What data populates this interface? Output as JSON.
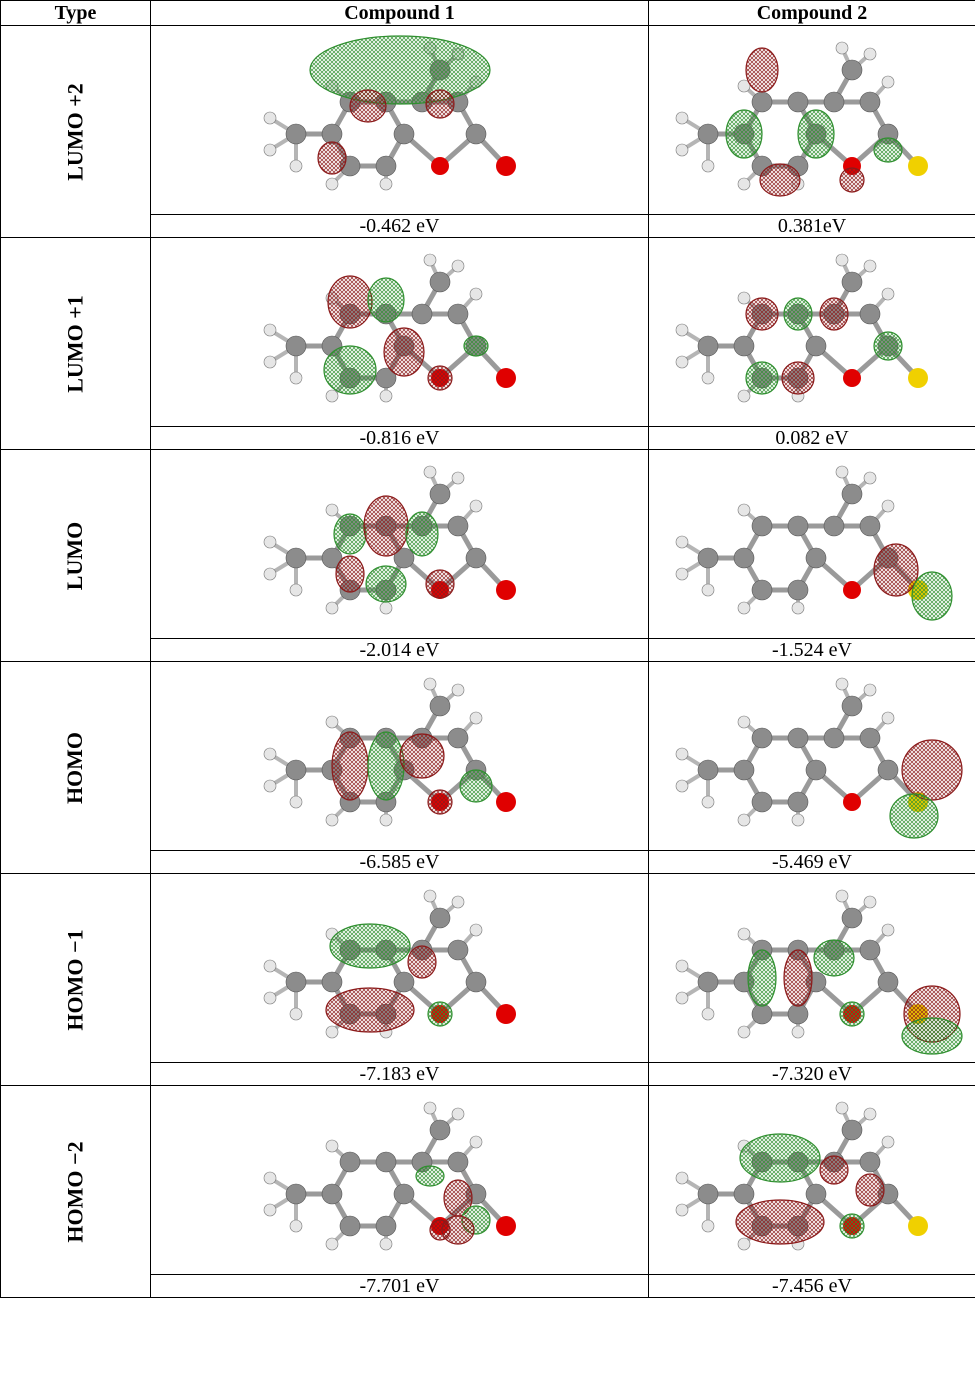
{
  "table": {
    "headers": [
      "Type",
      "Compound 1",
      "Compound 2"
    ],
    "rows": [
      {
        "type": "LUMO +2",
        "c1": "-0.462 eV",
        "c2": "0.381eV"
      },
      {
        "type": "LUMO +1",
        "c1": "-0.816 eV",
        "c2": "0.082 eV"
      },
      {
        "type": "LUMO",
        "c1": "-2.014 eV",
        "c2": "-1.524 eV"
      },
      {
        "type": "HOMO",
        "c1": "-6.585 eV",
        "c2": "-5.469 eV"
      },
      {
        "type": "HOMO −1",
        "c1": "-7.183 eV",
        "c2": "-7.320 eV"
      },
      {
        "type": "HOMO −2",
        "c1": "-7.701 eV",
        "c2": "-7.456 eV"
      }
    ]
  },
  "colors": {
    "lobe_positive": "#2f8f2f",
    "lobe_negative": "#8b1a1a",
    "carbon": "#8c8c8c",
    "hydrogen": "#e6e6e6",
    "oxygen": "#e00000",
    "sulfur": "#f0d000"
  }
}
